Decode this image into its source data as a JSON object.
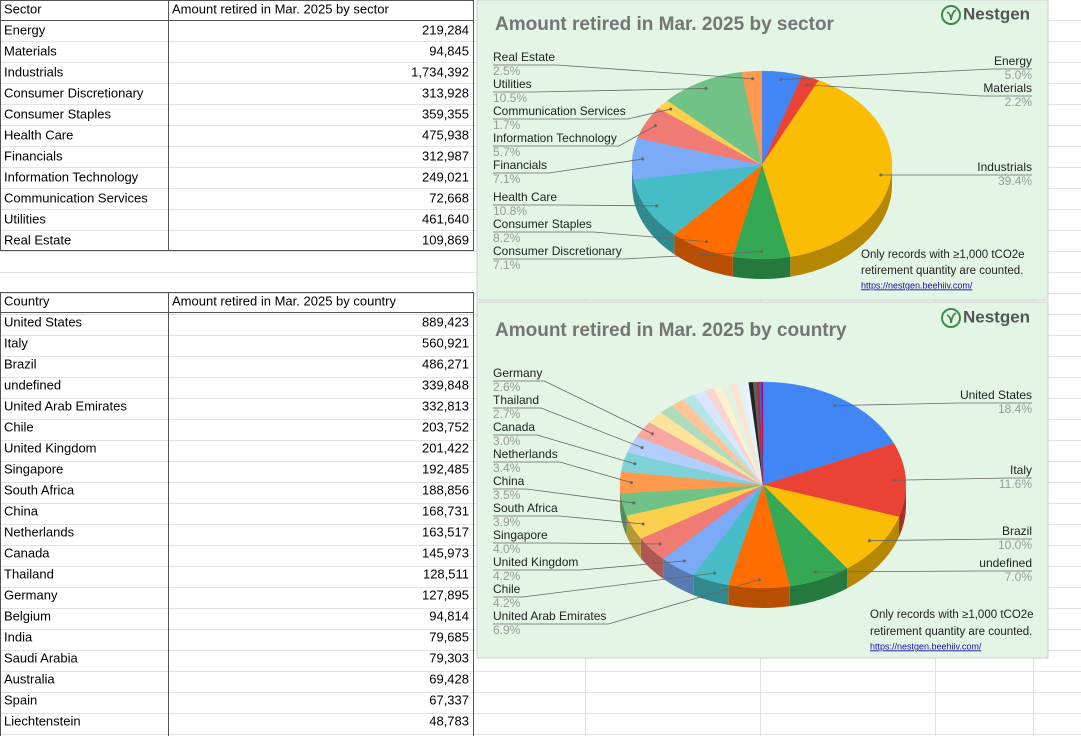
{
  "sheet": {
    "sector_table": {
      "header": [
        "Sector",
        "Amount retired in Mar. 2025 by sector"
      ],
      "rows": [
        [
          "Energy",
          "219,284"
        ],
        [
          "Materials",
          "94,845"
        ],
        [
          "Industrials",
          "1,734,392"
        ],
        [
          "Consumer Discretionary",
          "313,928"
        ],
        [
          "Consumer Staples",
          "359,355"
        ],
        [
          "Health Care",
          "475,938"
        ],
        [
          "Financials",
          "312,987"
        ],
        [
          "Information Technology",
          "249,021"
        ],
        [
          "Communication Services",
          "72,668"
        ],
        [
          "Utilities",
          "461,640"
        ],
        [
          "Real Estate",
          "109,869"
        ]
      ]
    },
    "country_table": {
      "header": [
        "Country",
        "Amount retired in Mar. 2025 by country"
      ],
      "rows": [
        [
          "United States",
          "889,423"
        ],
        [
          "Italy",
          "560,921"
        ],
        [
          "Brazil",
          "486,271"
        ],
        [
          "undefined",
          "339,848"
        ],
        [
          "United Arab Emirates",
          "332,813"
        ],
        [
          "Chile",
          "203,752"
        ],
        [
          "United Kingdom",
          "201,422"
        ],
        [
          "Singapore",
          "192,485"
        ],
        [
          "South Africa",
          "188,856"
        ],
        [
          "China",
          "168,731"
        ],
        [
          "Netherlands",
          "163,517"
        ],
        [
          "Canada",
          "145,973"
        ],
        [
          "Thailand",
          "128,511"
        ],
        [
          "Germany",
          "127,895"
        ],
        [
          "Belgium",
          "94,814"
        ],
        [
          "India",
          "79,685"
        ],
        [
          "Saudi Arabia",
          "79,303"
        ],
        [
          "Australia",
          "69,428"
        ],
        [
          "Spain",
          "67,337"
        ],
        [
          "Liechtenstein",
          "48,783"
        ]
      ]
    }
  },
  "chart_data": [
    {
      "type": "pie",
      "title": "Amount retired in Mar. 2025 by sector",
      "brand": "Nestgen",
      "note": [
        "Only records with ≥1,000 tCO2e",
        "retirement quantity are counted."
      ],
      "link": "https://nestgen.beehiiv.com/",
      "categories": [
        "Energy",
        "Materials",
        "Industrials",
        "Consumer Discretionary",
        "Consumer Staples",
        "Health Care",
        "Financials",
        "Information Technology",
        "Communication Services",
        "Utilities",
        "Real Estate"
      ],
      "values": [
        5.0,
        2.2,
        39.4,
        7.1,
        8.2,
        10.8,
        7.1,
        5.7,
        1.7,
        10.5,
        2.5
      ],
      "value_labels": [
        "5.0%",
        "2.2%",
        "39.4%",
        "7.1%",
        "8.2%",
        "10.8%",
        "7.1%",
        "5.7%",
        "1.7%",
        "10.5%",
        "2.5%"
      ],
      "colors": [
        "#4285f4",
        "#ea4335",
        "#fbbc04",
        "#34a853",
        "#ff6d01",
        "#46bdc6",
        "#7baaf7",
        "#f07b72",
        "#fcd04f",
        "#71c287",
        "#ff994d"
      ]
    },
    {
      "type": "pie",
      "title": "Amount retired in Mar. 2025 by country",
      "brand": "Nestgen",
      "note": [
        "Only records with ≥1,000 tCO2e",
        "retirement quantity are counted."
      ],
      "link": "https://nestgen.beehiiv.com/",
      "categories": [
        "United States",
        "Italy",
        "Brazil",
        "undefined",
        "United Arab Emirates",
        "Chile",
        "United Kingdom",
        "Singapore",
        "South Africa",
        "China",
        "Netherlands",
        "Canada",
        "Thailand",
        "Germany",
        null,
        null,
        null,
        null,
        null,
        null,
        null,
        null,
        null,
        null,
        null,
        null,
        null,
        null,
        null,
        null
      ],
      "values": [
        18.4,
        11.6,
        10.0,
        7.0,
        6.9,
        4.2,
        4.2,
        4.0,
        3.9,
        3.5,
        3.4,
        3.0,
        2.7,
        2.6,
        2.0,
        1.6,
        1.6,
        1.4,
        1.4,
        1.0,
        1.0,
        0.9,
        0.8,
        0.7,
        0.6,
        0.5,
        0.4,
        0.3,
        0.2,
        0.2
      ],
      "value_labels": [
        "18.4%",
        "11.6%",
        "10.0%",
        "7.0%",
        "6.9%",
        "4.2%",
        "4.2%",
        "4.0%",
        "3.9%",
        "3.5%",
        "3.4%",
        "3.0%",
        "2.7%",
        "2.6%",
        null,
        null,
        null,
        null,
        null,
        null,
        null,
        null,
        null,
        null,
        null,
        null,
        null,
        null,
        null,
        null
      ],
      "colors": [
        "#4285f4",
        "#ea4335",
        "#fbbc04",
        "#34a853",
        "#ff6d01",
        "#46bdc6",
        "#7baaf7",
        "#f07b72",
        "#fcd04f",
        "#71c287",
        "#ff994d",
        "#7ed1d7",
        "#b3cefb",
        "#f7a7a0",
        "#fde49b",
        "#aedcba",
        "#ffc599",
        "#b5e5e8",
        "#d9e6fd",
        "#fbd3d0",
        "#fef1cd",
        "#e1f2e5",
        "#ffe2cc",
        "#dff3f4",
        "#ecf3fe",
        "#222222",
        "#5e5e5e",
        "#c5221f",
        "#1a73e8",
        "#b80672"
      ]
    }
  ]
}
